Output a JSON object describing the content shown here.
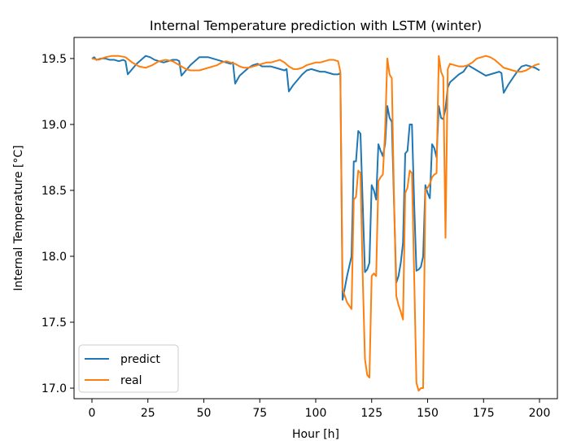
{
  "chart_data": {
    "type": "line",
    "title": "Internal Temperature prediction with LSTM (winter)",
    "xlabel": "Hour [h]",
    "ylabel": "Internal Temperature [°C]",
    "xlim": [
      -8,
      208
    ],
    "ylim": [
      16.92,
      19.66
    ],
    "xticks": [
      0,
      25,
      50,
      75,
      100,
      125,
      150,
      175,
      200
    ],
    "yticks": [
      17.0,
      17.5,
      18.0,
      18.5,
      19.0,
      19.5
    ],
    "xtick_labels": [
      "0",
      "25",
      "50",
      "75",
      "100",
      "125",
      "150",
      "175",
      "200"
    ],
    "ytick_labels": [
      "17.0",
      "17.5",
      "18.0",
      "18.5",
      "19.0",
      "19.5"
    ],
    "grid": false,
    "legend_position": "lower-left",
    "series": [
      {
        "name": "predict",
        "color": "#1f77b4",
        "points": [
          [
            0,
            19.5
          ],
          [
            1,
            19.51
          ],
          [
            2,
            19.49
          ],
          [
            4,
            19.5
          ],
          [
            6,
            19.5
          ],
          [
            8,
            19.49
          ],
          [
            10,
            19.49
          ],
          [
            12,
            19.48
          ],
          [
            14,
            19.49
          ],
          [
            15,
            19.48
          ],
          [
            16,
            19.38
          ],
          [
            18,
            19.42
          ],
          [
            20,
            19.46
          ],
          [
            22,
            19.49
          ],
          [
            24,
            19.52
          ],
          [
            26,
            19.51
          ],
          [
            28,
            19.49
          ],
          [
            30,
            19.48
          ],
          [
            32,
            19.47
          ],
          [
            34,
            19.48
          ],
          [
            36,
            19.49
          ],
          [
            38,
            19.49
          ],
          [
            39,
            19.48
          ],
          [
            40,
            19.37
          ],
          [
            42,
            19.41
          ],
          [
            44,
            19.45
          ],
          [
            46,
            19.48
          ],
          [
            48,
            19.51
          ],
          [
            50,
            19.51
          ],
          [
            52,
            19.51
          ],
          [
            54,
            19.5
          ],
          [
            56,
            19.49
          ],
          [
            58,
            19.48
          ],
          [
            60,
            19.47
          ],
          [
            62,
            19.46
          ],
          [
            63,
            19.47
          ],
          [
            64,
            19.31
          ],
          [
            66,
            19.37
          ],
          [
            68,
            19.4
          ],
          [
            70,
            19.43
          ],
          [
            72,
            19.45
          ],
          [
            74,
            19.46
          ],
          [
            76,
            19.44
          ],
          [
            78,
            19.44
          ],
          [
            80,
            19.44
          ],
          [
            82,
            19.43
          ],
          [
            84,
            19.42
          ],
          [
            86,
            19.41
          ],
          [
            87,
            19.42
          ],
          [
            88,
            19.25
          ],
          [
            90,
            19.3
          ],
          [
            92,
            19.34
          ],
          [
            94,
            19.38
          ],
          [
            96,
            19.41
          ],
          [
            98,
            19.42
          ],
          [
            100,
            19.41
          ],
          [
            102,
            19.4
          ],
          [
            104,
            19.4
          ],
          [
            106,
            19.39
          ],
          [
            108,
            19.38
          ],
          [
            110,
            19.38
          ],
          [
            111,
            19.39
          ],
          [
            112,
            17.67
          ],
          [
            114,
            17.85
          ],
          [
            116,
            18.0
          ],
          [
            117,
            18.72
          ],
          [
            118,
            18.72
          ],
          [
            119,
            18.95
          ],
          [
            120,
            18.93
          ],
          [
            121,
            18.4
          ],
          [
            122,
            17.88
          ],
          [
            123,
            17.9
          ],
          [
            124,
            17.95
          ],
          [
            125,
            18.54
          ],
          [
            126,
            18.5
          ],
          [
            127,
            18.43
          ],
          [
            128,
            18.85
          ],
          [
            129,
            18.8
          ],
          [
            130,
            18.76
          ],
          [
            131,
            18.85
          ],
          [
            132,
            19.14
          ],
          [
            133,
            19.05
          ],
          [
            134,
            19.02
          ],
          [
            135,
            18.4
          ],
          [
            136,
            17.8
          ],
          [
            137,
            17.85
          ],
          [
            138,
            17.95
          ],
          [
            139,
            18.1
          ],
          [
            140,
            18.78
          ],
          [
            141,
            18.8
          ],
          [
            142,
            19.0
          ],
          [
            143,
            19.0
          ],
          [
            144,
            18.4
          ],
          [
            145,
            17.89
          ],
          [
            146,
            17.9
          ],
          [
            147,
            17.92
          ],
          [
            148,
            18.0
          ],
          [
            149,
            18.54
          ],
          [
            150,
            18.48
          ],
          [
            151,
            18.44
          ],
          [
            152,
            18.85
          ],
          [
            153,
            18.82
          ],
          [
            154,
            18.75
          ],
          [
            155,
            19.14
          ],
          [
            156,
            19.05
          ],
          [
            157,
            19.04
          ],
          [
            158,
            19.12
          ],
          [
            159,
            19.28
          ],
          [
            160,
            19.32
          ],
          [
            162,
            19.35
          ],
          [
            164,
            19.38
          ],
          [
            166,
            19.4
          ],
          [
            168,
            19.45
          ],
          [
            170,
            19.43
          ],
          [
            172,
            19.41
          ],
          [
            174,
            19.39
          ],
          [
            176,
            19.37
          ],
          [
            178,
            19.38
          ],
          [
            180,
            19.39
          ],
          [
            182,
            19.4
          ],
          [
            183,
            19.39
          ],
          [
            184,
            19.24
          ],
          [
            186,
            19.3
          ],
          [
            188,
            19.35
          ],
          [
            190,
            19.4
          ],
          [
            192,
            19.44
          ],
          [
            194,
            19.45
          ],
          [
            196,
            19.44
          ],
          [
            198,
            19.43
          ],
          [
            200,
            19.41
          ]
        ]
      },
      {
        "name": "real",
        "color": "#ff7f0e",
        "points": [
          [
            0,
            19.5
          ],
          [
            3,
            19.49
          ],
          [
            6,
            19.51
          ],
          [
            9,
            19.52
          ],
          [
            12,
            19.52
          ],
          [
            15,
            19.51
          ],
          [
            18,
            19.47
          ],
          [
            21,
            19.44
          ],
          [
            24,
            19.43
          ],
          [
            27,
            19.45
          ],
          [
            30,
            19.48
          ],
          [
            33,
            19.49
          ],
          [
            36,
            19.48
          ],
          [
            38,
            19.46
          ],
          [
            40,
            19.44
          ],
          [
            42,
            19.42
          ],
          [
            44,
            19.41
          ],
          [
            46,
            19.41
          ],
          [
            48,
            19.41
          ],
          [
            50,
            19.42
          ],
          [
            52,
            19.43
          ],
          [
            54,
            19.44
          ],
          [
            56,
            19.45
          ],
          [
            58,
            19.47
          ],
          [
            60,
            19.48
          ],
          [
            62,
            19.47
          ],
          [
            64,
            19.46
          ],
          [
            66,
            19.44
          ],
          [
            68,
            19.43
          ],
          [
            70,
            19.43
          ],
          [
            72,
            19.44
          ],
          [
            74,
            19.45
          ],
          [
            76,
            19.46
          ],
          [
            78,
            19.47
          ],
          [
            80,
            19.47
          ],
          [
            82,
            19.48
          ],
          [
            84,
            19.49
          ],
          [
            86,
            19.47
          ],
          [
            88,
            19.44
          ],
          [
            90,
            19.42
          ],
          [
            92,
            19.42
          ],
          [
            94,
            19.43
          ],
          [
            96,
            19.45
          ],
          [
            98,
            19.46
          ],
          [
            100,
            19.47
          ],
          [
            102,
            19.47
          ],
          [
            104,
            19.48
          ],
          [
            106,
            19.49
          ],
          [
            108,
            19.49
          ],
          [
            110,
            19.48
          ],
          [
            111,
            19.4
          ],
          [
            112,
            17.75
          ],
          [
            114,
            17.65
          ],
          [
            116,
            17.6
          ],
          [
            117,
            18.43
          ],
          [
            118,
            18.45
          ],
          [
            119,
            18.65
          ],
          [
            120,
            18.63
          ],
          [
            121,
            17.85
          ],
          [
            122,
            17.22
          ],
          [
            123,
            17.1
          ],
          [
            124,
            17.08
          ],
          [
            125,
            17.85
          ],
          [
            126,
            17.87
          ],
          [
            127,
            17.85
          ],
          [
            128,
            18.57
          ],
          [
            129,
            18.6
          ],
          [
            130,
            18.62
          ],
          [
            131,
            18.95
          ],
          [
            132,
            19.5
          ],
          [
            133,
            19.38
          ],
          [
            134,
            19.35
          ],
          [
            135,
            18.43
          ],
          [
            136,
            17.7
          ],
          [
            137,
            17.63
          ],
          [
            138,
            17.58
          ],
          [
            139,
            17.52
          ],
          [
            140,
            18.48
          ],
          [
            141,
            18.52
          ],
          [
            142,
            18.65
          ],
          [
            143,
            18.63
          ],
          [
            144,
            17.85
          ],
          [
            145,
            17.04
          ],
          [
            146,
            16.98
          ],
          [
            147,
            17.0
          ],
          [
            148,
            17.0
          ],
          [
            149,
            18.5
          ],
          [
            150,
            18.52
          ],
          [
            151,
            18.55
          ],
          [
            152,
            18.6
          ],
          [
            153,
            18.62
          ],
          [
            154,
            18.63
          ],
          [
            155,
            19.52
          ],
          [
            156,
            19.4
          ],
          [
            157,
            19.36
          ],
          [
            158,
            18.14
          ],
          [
            159,
            19.42
          ],
          [
            160,
            19.46
          ],
          [
            162,
            19.45
          ],
          [
            164,
            19.44
          ],
          [
            166,
            19.44
          ],
          [
            168,
            19.45
          ],
          [
            170,
            19.47
          ],
          [
            172,
            19.5
          ],
          [
            174,
            19.51
          ],
          [
            176,
            19.52
          ],
          [
            178,
            19.51
          ],
          [
            180,
            19.49
          ],
          [
            182,
            19.46
          ],
          [
            184,
            19.43
          ],
          [
            186,
            19.42
          ],
          [
            188,
            19.41
          ],
          [
            190,
            19.4
          ],
          [
            192,
            19.4
          ],
          [
            194,
            19.41
          ],
          [
            196,
            19.43
          ],
          [
            198,
            19.45
          ],
          [
            200,
            19.46
          ]
        ]
      }
    ]
  }
}
